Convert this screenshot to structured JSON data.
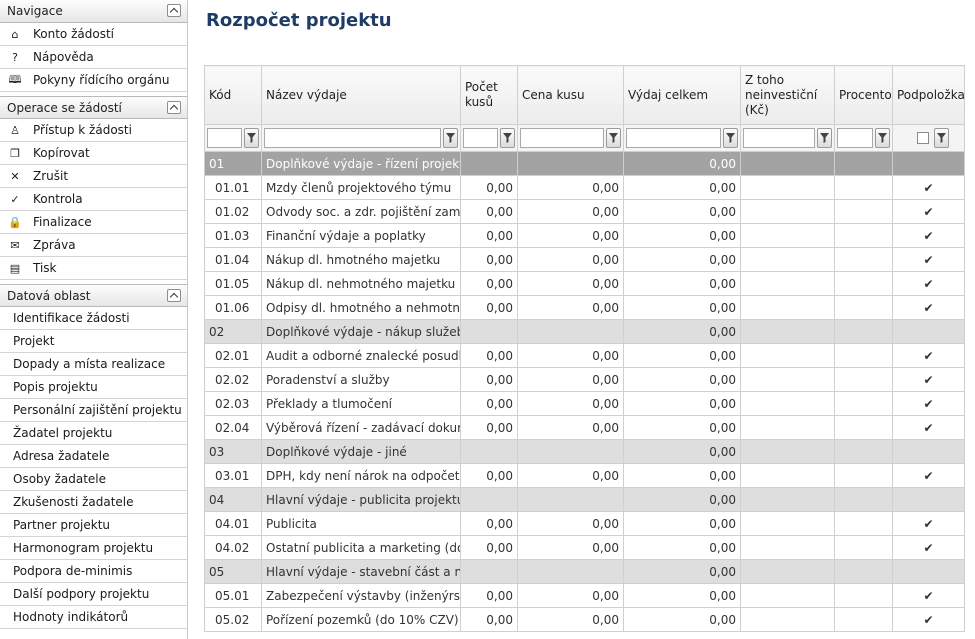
{
  "sidebar": {
    "navigace": {
      "title": "Navigace",
      "items": [
        {
          "icon": "home-icon",
          "glyph": "⌂",
          "label": "Konto žádostí"
        },
        {
          "icon": "help-icon",
          "glyph": "?",
          "label": "Nápověda"
        },
        {
          "icon": "book-icon",
          "glyph": "🕮",
          "label": "Pokyny řídícího orgánu"
        }
      ]
    },
    "operace": {
      "title": "Operace se žádostí",
      "items": [
        {
          "icon": "user-icon",
          "glyph": "♙",
          "label": "Přístup k žádosti"
        },
        {
          "icon": "copy-icon",
          "glyph": "❐",
          "label": "Kopírovat"
        },
        {
          "icon": "cancel-icon",
          "glyph": "✕",
          "label": "Zrušit"
        },
        {
          "icon": "check-icon",
          "glyph": "✓",
          "label": "Kontrola"
        },
        {
          "icon": "lock-icon",
          "glyph": "🔒",
          "label": "Finalizace"
        },
        {
          "icon": "mail-icon",
          "glyph": "✉",
          "label": "Zpráva"
        },
        {
          "icon": "print-icon",
          "glyph": "▤",
          "label": "Tisk"
        }
      ]
    },
    "datova": {
      "title": "Datová oblast",
      "items": [
        "Identifikace žádosti",
        "Projekt",
        "Dopady a místa realizace",
        "Popis projektu",
        "Personální zajištění projektu",
        "Žadatel projektu",
        "Adresa žadatele",
        "Osoby žadatele",
        "Zkušenosti žadatele",
        "Partner projektu",
        "Harmonogram projektu",
        "Podpora de-minimis",
        "Další podpory projektu",
        "Hodnoty indikátorů"
      ]
    }
  },
  "main": {
    "title": "Rozpočet projektu",
    "columns": {
      "kod": "Kód",
      "nazev": "Název výdaje",
      "pocet": "Počet kusů",
      "cena": "Cena kusu",
      "vydaj": "Výdaj celkem",
      "neinvest": "Z toho neinvestiční (Kč)",
      "procento": "Procento",
      "podpolozka": "Podpoložka"
    },
    "rows": [
      {
        "type": "grp-dark",
        "code": "01",
        "name": "Doplňkové výdaje - řízení projektu",
        "pocet": "",
        "cena": "",
        "vydaj": "0,00",
        "check": false
      },
      {
        "type": "row",
        "code": "01.01",
        "name": "Mzdy členů projektového týmu",
        "pocet": "0,00",
        "cena": "0,00",
        "vydaj": "0,00",
        "check": true
      },
      {
        "type": "row",
        "code": "01.02",
        "name": "Odvody soc. a zdr. pojištění zamě...",
        "pocet": "0,00",
        "cena": "0,00",
        "vydaj": "0,00",
        "check": true
      },
      {
        "type": "row",
        "code": "01.03",
        "name": "Finanční výdaje a poplatky",
        "pocet": "0,00",
        "cena": "0,00",
        "vydaj": "0,00",
        "check": true
      },
      {
        "type": "row",
        "code": "01.04",
        "name": "Nákup dl. hmotného majetku",
        "pocet": "0,00",
        "cena": "0,00",
        "vydaj": "0,00",
        "check": true
      },
      {
        "type": "row",
        "code": "01.05",
        "name": "Nákup dl. nehmotného majetku (...",
        "pocet": "0,00",
        "cena": "0,00",
        "vydaj": "0,00",
        "check": true
      },
      {
        "type": "row",
        "code": "01.06",
        "name": "Odpisy dl. hmotného a nehmotné...",
        "pocet": "0,00",
        "cena": "0,00",
        "vydaj": "0,00",
        "check": true
      },
      {
        "type": "grp",
        "code": "02",
        "name": "Doplňkové výdaje - nákup služeb",
        "pocet": "",
        "cena": "",
        "vydaj": "0,00",
        "check": false
      },
      {
        "type": "row",
        "code": "02.01",
        "name": "Audit a odborné znalecké posudky",
        "pocet": "0,00",
        "cena": "0,00",
        "vydaj": "0,00",
        "check": true
      },
      {
        "type": "row",
        "code": "02.02",
        "name": "Poradenství a služby",
        "pocet": "0,00",
        "cena": "0,00",
        "vydaj": "0,00",
        "check": true
      },
      {
        "type": "row",
        "code": "02.03",
        "name": "Překlady a tlumočení",
        "pocet": "0,00",
        "cena": "0,00",
        "vydaj": "0,00",
        "check": true
      },
      {
        "type": "row",
        "code": "02.04",
        "name": "Výběrová řízení - zadávací dokum...",
        "pocet": "0,00",
        "cena": "0,00",
        "vydaj": "0,00",
        "check": true
      },
      {
        "type": "grp",
        "code": "03",
        "name": "Doplňkové výdaje - jiné",
        "pocet": "",
        "cena": "",
        "vydaj": "0,00",
        "check": false
      },
      {
        "type": "row",
        "code": "03.01",
        "name": "DPH, kdy není nárok na odpočet...",
        "pocet": "0,00",
        "cena": "0,00",
        "vydaj": "0,00",
        "check": true
      },
      {
        "type": "grp",
        "code": "04",
        "name": "Hlavní výdaje - publicita projektu",
        "pocet": "",
        "cena": "",
        "vydaj": "0,00",
        "check": false
      },
      {
        "type": "row",
        "code": "04.01",
        "name": "Publicita",
        "pocet": "0,00",
        "cena": "0,00",
        "vydaj": "0,00",
        "check": true
      },
      {
        "type": "row",
        "code": "04.02",
        "name": "Ostatní publicita a marketing (do...",
        "pocet": "0,00",
        "cena": "0,00",
        "vydaj": "0,00",
        "check": true
      },
      {
        "type": "grp",
        "code": "05",
        "name": "Hlavní výdaje - stavební část a ná...",
        "pocet": "",
        "cena": "",
        "vydaj": "0,00",
        "check": false
      },
      {
        "type": "row",
        "code": "05.01",
        "name": "Zabezpečení výstavby (inženýrská...",
        "pocet": "0,00",
        "cena": "0,00",
        "vydaj": "0,00",
        "check": true
      },
      {
        "type": "row",
        "code": "05.02",
        "name": "Pořízení pozemků (do 10% CZV)",
        "pocet": "0,00",
        "cena": "0,00",
        "vydaj": "0,00",
        "check": true
      }
    ]
  }
}
